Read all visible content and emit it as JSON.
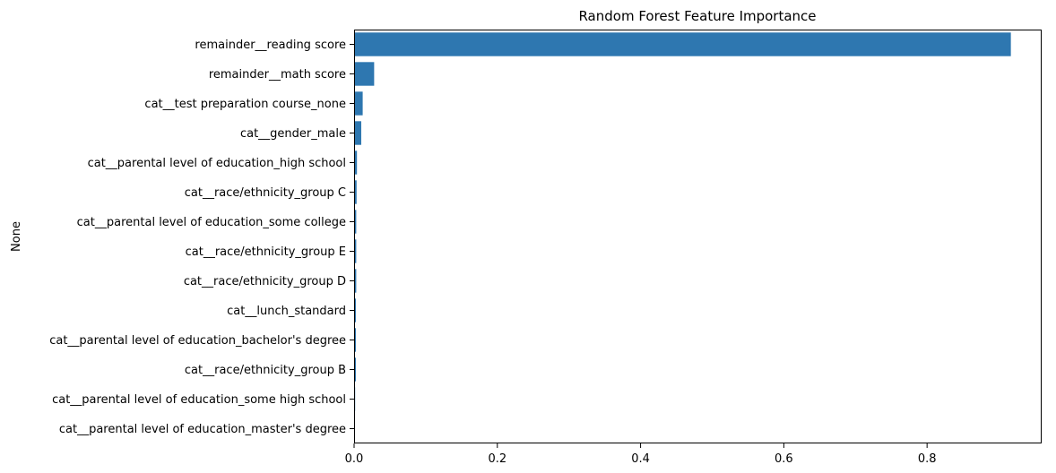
{
  "chart_data": {
    "type": "bar",
    "orientation": "horizontal",
    "title": "Random Forest Feature Importance",
    "xlabel": "",
    "ylabel": "None",
    "xlim": [
      0,
      0.96
    ],
    "xticks": [
      0.0,
      0.2,
      0.4,
      0.6,
      0.8
    ],
    "xtick_labels": [
      "0.0",
      "0.2",
      "0.4",
      "0.6",
      "0.8"
    ],
    "grid": false,
    "bar_color": "#2e77b0",
    "categories": [
      "remainder__reading score",
      "remainder__math score",
      "cat__test preparation course_none",
      "cat__gender_male",
      "cat__parental level of education_high school",
      "cat__race/ethnicity_group C",
      "cat__parental level of education_some college",
      "cat__race/ethnicity_group E",
      "cat__race/ethnicity_group D",
      "cat__lunch_standard",
      "cat__parental level of education_bachelor's degree",
      "cat__race/ethnicity_group B",
      "cat__parental level of education_some high school",
      "cat__parental level of education_master's degree"
    ],
    "values": [
      0.917,
      0.028,
      0.012,
      0.01,
      0.004,
      0.0035,
      0.003,
      0.003,
      0.003,
      0.0025,
      0.0025,
      0.0025,
      0.0015,
      0.0012
    ]
  }
}
